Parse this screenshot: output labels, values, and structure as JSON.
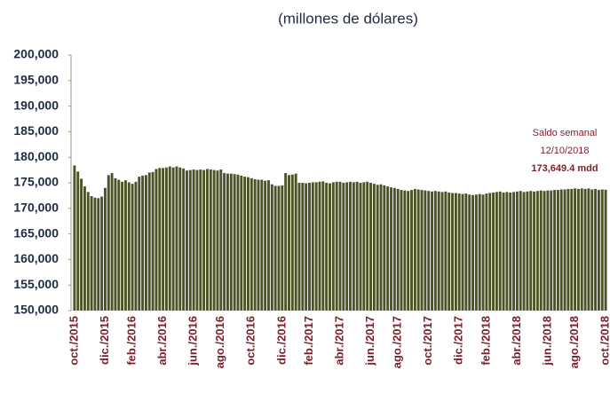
{
  "chart_data": {
    "type": "bar",
    "title": "(millones de dólares)",
    "annotations": [
      "Saldo semanal",
      "12/10/2018",
      "173,649.4 mdd"
    ],
    "color": "#4d5326",
    "ylim": [
      150000,
      200000
    ],
    "yticks": [
      {
        "value": 150000,
        "label": "150,000"
      },
      {
        "value": 155000,
        "label": "155,000"
      },
      {
        "value": 160000,
        "label": "160,000"
      },
      {
        "value": 165000,
        "label": "165,000"
      },
      {
        "value": 170000,
        "label": "170,000"
      },
      {
        "value": 175000,
        "label": "175,000"
      },
      {
        "value": 180000,
        "label": "180,000"
      },
      {
        "value": 185000,
        "label": "185,000"
      },
      {
        "value": 190000,
        "label": "190,000"
      },
      {
        "value": 195000,
        "label": "195,000"
      },
      {
        "value": 200000,
        "label": "200,000"
      }
    ],
    "categories": [
      "oct./2015",
      null,
      null,
      null,
      null,
      null,
      null,
      null,
      null,
      "dic./2015",
      null,
      null,
      null,
      null,
      null,
      null,
      null,
      "feb./2016",
      null,
      null,
      null,
      null,
      null,
      null,
      null,
      null,
      "abr./2016",
      null,
      null,
      null,
      null,
      null,
      null,
      null,
      null,
      "jun./2016",
      null,
      null,
      null,
      null,
      null,
      null,
      null,
      "ago./2016",
      null,
      null,
      null,
      null,
      null,
      null,
      null,
      null,
      "oct./2016",
      null,
      null,
      null,
      null,
      null,
      null,
      null,
      null,
      "dic./2016",
      null,
      null,
      null,
      null,
      null,
      null,
      null,
      "feb./2017",
      null,
      null,
      null,
      null,
      null,
      null,
      null,
      null,
      "abr./2017",
      null,
      null,
      null,
      null,
      null,
      null,
      null,
      null,
      "jun./2017",
      null,
      null,
      null,
      null,
      null,
      null,
      null,
      "ago./2017",
      null,
      null,
      null,
      null,
      null,
      null,
      null,
      null,
      "oct./2017",
      null,
      null,
      null,
      null,
      null,
      null,
      null,
      null,
      "dic./2017",
      null,
      null,
      null,
      null,
      null,
      null,
      null,
      "feb./2018",
      null,
      null,
      null,
      null,
      null,
      null,
      null,
      null,
      "abr./2018",
      null,
      null,
      null,
      null,
      null,
      null,
      null,
      null,
      "jun./2018",
      null,
      null,
      null,
      null,
      null,
      null,
      null,
      "ago./2018",
      null,
      null,
      null,
      null,
      null,
      null,
      null,
      null,
      "oct./2018"
    ],
    "values": [
      178400,
      177200,
      175800,
      174300,
      173200,
      172400,
      172100,
      172000,
      172300,
      174000,
      176500,
      176900,
      175900,
      175600,
      175200,
      175500,
      175100,
      174800,
      175200,
      176200,
      176400,
      176500,
      177000,
      177100,
      177700,
      177900,
      177900,
      178000,
      178200,
      178000,
      178200,
      178000,
      177800,
      177400,
      177500,
      177600,
      177500,
      177600,
      177500,
      177700,
      177600,
      177500,
      177400,
      177600,
      176900,
      176800,
      176800,
      176700,
      176600,
      176400,
      176200,
      176100,
      175900,
      175700,
      175600,
      175600,
      175400,
      175500,
      174700,
      174400,
      174400,
      174500,
      176900,
      176500,
      176600,
      176800,
      175000,
      175000,
      174900,
      175000,
      175100,
      175100,
      175200,
      175300,
      175000,
      174900,
      175100,
      175200,
      175200,
      175000,
      175100,
      175200,
      175100,
      175200,
      175000,
      175100,
      175200,
      175000,
      174800,
      174600,
      174700,
      174500,
      174300,
      174100,
      174000,
      173800,
      173600,
      173500,
      173400,
      173600,
      173800,
      173700,
      173600,
      173500,
      173400,
      173300,
      173400,
      173300,
      173200,
      173300,
      173100,
      173000,
      173000,
      172900,
      172800,
      172900,
      172700,
      172600,
      172700,
      172800,
      172700,
      172900,
      173000,
      173100,
      173200,
      173300,
      173100,
      173200,
      173100,
      173200,
      173300,
      173400,
      173200,
      173300,
      173400,
      173300,
      173400,
      173500,
      173400,
      173500,
      173500,
      173600,
      173600,
      173700,
      173700,
      173800,
      173800,
      173900,
      173800,
      173900,
      173800,
      173900,
      173700,
      173800,
      173600,
      173700,
      173649.4
    ]
  }
}
